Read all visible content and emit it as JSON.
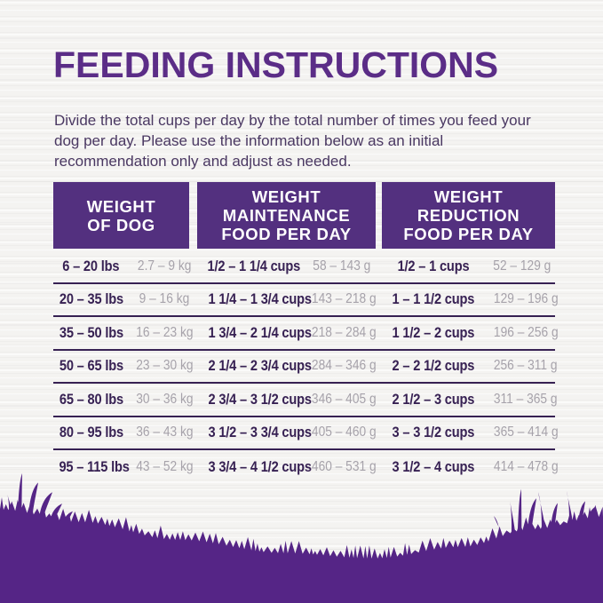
{
  "page": {
    "title": "FEEDING INSTRUCTIONS",
    "intro": "Divide the total cups per day by the total number of times you feed your dog per day. Please use the information below as an initial recommendation only and adjust as needed."
  },
  "table": {
    "headers": [
      {
        "lines": [
          "WEIGHT",
          "OF DOG"
        ]
      },
      {
        "lines": [
          "WEIGHT",
          "MAINTENANCE",
          "FOOD PER DAY"
        ]
      },
      {
        "lines": [
          "WEIGHT",
          "REDUCTION",
          "FOOD PER DAY"
        ]
      }
    ],
    "rows": [
      {
        "lbs": "6 – 20 lbs",
        "kg": "2.7 – 9 kg",
        "maint_cups": "1/2 – 1 1/4 cups",
        "maint_g": "58 – 143 g",
        "red_cups": "1/2 – 1 cups",
        "red_g": "52 – 129 g"
      },
      {
        "lbs": "20 – 35 lbs",
        "kg": "9 – 16 kg",
        "maint_cups": "1 1/4 – 1 3/4 cups",
        "maint_g": "143 – 218 g",
        "red_cups": "1 – 1 1/2 cups",
        "red_g": "129 – 196 g"
      },
      {
        "lbs": "35 – 50 lbs",
        "kg": "16 – 23 kg",
        "maint_cups": "1 3/4 – 2 1/4 cups",
        "maint_g": "218 – 284 g",
        "red_cups": "1 1/2 – 2 cups",
        "red_g": "196 – 256 g"
      },
      {
        "lbs": "50 – 65 lbs",
        "kg": "23 – 30 kg",
        "maint_cups": "2 1/4 – 2 3/4 cups",
        "maint_g": "284 – 346 g",
        "red_cups": "2 – 2 1/2 cups",
        "red_g": "256 – 311 g"
      },
      {
        "lbs": "65 – 80 lbs",
        "kg": "30 – 36 kg",
        "maint_cups": "2 3/4 – 3 1/2 cups",
        "maint_g": "346 – 405 g",
        "red_cups": "2 1/2 – 3 cups",
        "red_g": "311 – 365 g"
      },
      {
        "lbs": "80 – 95 lbs",
        "kg": "36 – 43 kg",
        "maint_cups": "3 1/2 – 3 3/4 cups",
        "maint_g": "405 – 460 g",
        "red_cups": "3 – 3 1/2 cups",
        "red_g": "365 – 414 g"
      },
      {
        "lbs": "95 – 115 lbs",
        "kg": "43 – 52 kg",
        "maint_cups": "3 3/4 – 4 1/2 cups",
        "maint_g": "460 – 531 g",
        "red_cups": "3 1/2 – 4 cups",
        "red_g": "414 – 478 g"
      }
    ]
  },
  "colors": {
    "title_purple": "#5b2d87",
    "header_purple": "#53307f",
    "text_dark_purple": "#372153",
    "muted_gray": "#a6a2aa",
    "body_text_purple": "#4a3862",
    "grass_purple": "#552586",
    "background": "#f4f3f1"
  }
}
